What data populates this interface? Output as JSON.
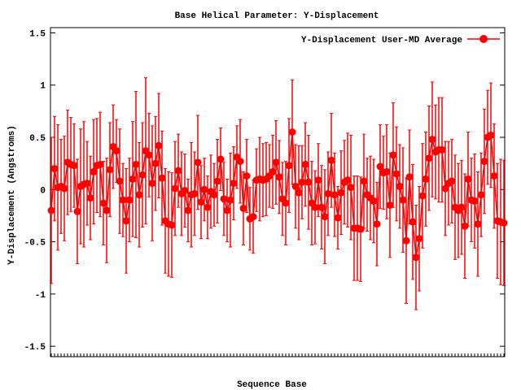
{
  "chart_data": {
    "type": "line",
    "title": "Base  Helical Parameter: Y-Displacement",
    "x_label": "Sequence Base",
    "y_label": "Y-Displacement (Angstroms)",
    "ylim": [
      -1.6,
      1.55
    ],
    "yticks": [
      -1.5,
      -1,
      -0.5,
      0,
      0.5,
      1,
      1.5
    ],
    "legend": "top right",
    "categories": [
      null,
      null,
      null,
      null,
      null,
      null,
      null,
      null,
      null,
      null,
      null,
      null,
      null,
      null,
      null,
      null,
      null,
      null,
      null,
      null,
      null,
      null,
      null,
      null,
      null,
      null,
      null,
      null,
      null,
      null,
      null,
      null,
      null,
      null,
      null,
      null,
      null,
      null,
      null,
      null,
      null,
      null,
      null,
      null,
      null,
      null,
      null,
      null,
      null,
      null,
      null,
      null,
      null,
      null,
      null,
      null,
      null,
      null,
      null,
      null,
      null,
      null,
      null,
      null,
      null,
      null,
      null,
      null,
      null,
      null,
      null,
      null,
      null,
      null,
      null,
      null,
      null,
      null,
      null,
      null,
      null,
      null,
      null,
      null,
      null,
      null,
      null,
      null,
      null,
      null,
      null,
      null,
      null,
      null,
      null,
      null,
      null,
      null,
      null,
      null,
      null,
      null,
      null,
      null,
      null,
      null,
      null,
      null,
      null,
      null,
      null,
      null,
      null,
      null,
      null,
      null,
      null,
      null,
      null,
      null,
      null,
      null,
      null,
      null,
      null,
      null,
      null,
      null,
      null,
      null,
      null,
      null,
      null,
      null,
      null,
      null,
      null,
      null,
      null,
      null
    ],
    "series": [
      {
        "name": "Y-Displacement User-MD Average",
        "color": "#ff0000",
        "values": [
          -0.2,
          0.2,
          0.02,
          0.03,
          0.01,
          0.26,
          0.24,
          0.23,
          -0.21,
          0.03,
          0.05,
          0.06,
          -0.08,
          0.17,
          0.23,
          0.24,
          -0.13,
          -0.2,
          0.19,
          0.41,
          0.37,
          0.08,
          -0.1,
          -0.3,
          -0.1,
          0.1,
          0.24,
          -0.05,
          0.14,
          0.37,
          0.33,
          0.06,
          0.25,
          0.42,
          0.11,
          -0.3,
          -0.33,
          -0.34,
          0.01,
          0.18,
          -0.04,
          -0.01,
          -0.2,
          -0.05,
          -0.04,
          0.26,
          -0.12,
          0,
          -0.17,
          -0.02,
          -0.05,
          0.08,
          0.29,
          -0.09,
          -0.2,
          -0.1,
          0.06,
          0.31,
          0.27,
          -0.18,
          0.13,
          -0.28,
          -0.26,
          0.09,
          0.1,
          0.09,
          0.1,
          0.13,
          0.17,
          0.26,
          0.12,
          -0.09,
          -0.13,
          0.23,
          0.55,
          0.03,
          -0.03,
          0.07,
          0.24,
          0.07,
          -0.13,
          -0.17,
          0.09,
          -0.17,
          -0.26,
          -0.04,
          0.28,
          -0.05,
          -0.27,
          -0.03,
          0.07,
          0.09,
          0.02,
          -0.37,
          -0.37,
          -0.38,
          0.08,
          -0.05,
          -0.08,
          -0.11,
          -0.33,
          0.22,
          0.16,
          0.17,
          -0.15,
          0.33,
          0.15,
          0.03,
          -0.1,
          -0.49,
          0.12,
          -0.31,
          -0.65,
          -0.47,
          -0.06,
          0.1,
          0.3,
          0.48,
          0.36,
          0.38,
          0.38,
          0.01,
          0.06,
          0.08,
          -0.17,
          -0.2,
          -0.17,
          -0.35,
          0.1,
          -0.1,
          -0.11,
          -0.33,
          -0.05,
          0.27,
          0.5,
          0.52,
          0.13,
          -0.3,
          -0.31,
          -0.32
        ],
        "errors": [
          0.7,
          0.5,
          0.6,
          0.45,
          0.5,
          0.5,
          0.45,
          0.4,
          0.5,
          0.55,
          0.6,
          0.4,
          0.4,
          0.5,
          0.45,
          0.5,
          0.4,
          0.5,
          0.45,
          0.4,
          0.3,
          0.5,
          0.35,
          0.5,
          0.4,
          0.55,
          0.7,
          0.5,
          0.5,
          0.7,
          0.4,
          0.55,
          0.45,
          0.5,
          0.45,
          0.5,
          0.5,
          0.5,
          0.45,
          0.35,
          0.4,
          0.35,
          0.3,
          0.5,
          0.4,
          0.45,
          0.35,
          0.3,
          0.3,
          0.35,
          0.3,
          0.4,
          0.3,
          0.35,
          0.3,
          0.45,
          0.35,
          0.3,
          0.4,
          0.35,
          0.35,
          0.3,
          0.35,
          0.3,
          0.4,
          0.35,
          0.35,
          0.3,
          0.35,
          0.4,
          0.35,
          0.35,
          0.4,
          0.45,
          0.5,
          0.4,
          0.45,
          0.35,
          0.4,
          0.45,
          0.4,
          0.35,
          0.35,
          0.4,
          0.45,
          0.4,
          0.45,
          0.4,
          0.3,
          0.4,
          0.4,
          0.45,
          0.5,
          0.5,
          0.5,
          0.5,
          0.45,
          0.35,
          0.4,
          0.4,
          0.4,
          0.4,
          0.35,
          0.45,
          0.5,
          0.5,
          0.45,
          0.4,
          0.5,
          0.6,
          0.45,
          0.55,
          0.5,
          0.5,
          0.5,
          0.45,
          0.5,
          0.55,
          0.45,
          0.5,
          0.5,
          0.45,
          0.4,
          0.4,
          0.5,
          0.45,
          0.45,
          0.5,
          0.45,
          0.4,
          0.45,
          0.5,
          0.4,
          0.5,
          0.45,
          0.5,
          0.5,
          0.55,
          0.6,
          0.6
        ]
      }
    ]
  }
}
